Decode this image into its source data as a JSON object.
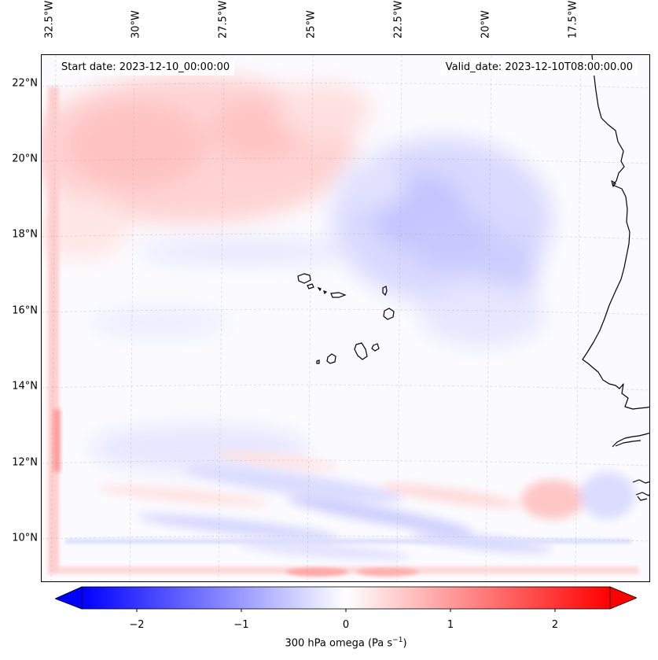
{
  "map": {
    "start_date": "Start date: 2023-12-10_00:00:00",
    "valid_date": "Valid_date: 2023-12-10T08:00:00.00",
    "longitude_labels": [
      "32.5°W",
      "30°W",
      "27.5°W",
      "25°W",
      "22.5°W",
      "20°W",
      "17.5°W"
    ],
    "latitude_labels": [
      "22°N",
      "20°N",
      "18°N",
      "16°N",
      "14°N",
      "12°N",
      "10°N"
    ],
    "extent": {
      "lon": [
        -32.7,
        -15.8
      ],
      "lat": [
        8.9,
        22.8
      ]
    },
    "gridlines": true,
    "field": "300 hPa omega"
  },
  "colorbar": {
    "label_prefix": "300 hPa omega (Pa s",
    "label_exponent": "−1",
    "label_suffix": ")",
    "ticks": [
      "−2",
      "−1",
      "0",
      "1",
      "2"
    ],
    "range": [
      -2.6,
      2.6
    ],
    "extend": "both",
    "colors": {
      "negative": "#0000ff",
      "neutral": "#ffffff",
      "positive": "#ff0000"
    }
  }
}
